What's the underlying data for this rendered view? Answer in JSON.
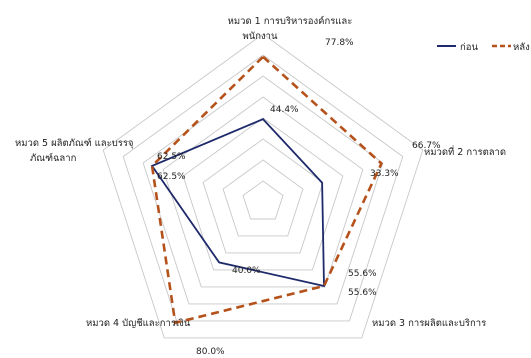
{
  "chart_data": {
    "type": "radar",
    "title": "",
    "categories": [
      [
        "หมวด 1 การบริหารองค์กรและ",
        "พนักงาน"
      ],
      [
        "หมวดที่ 2 การตลาด"
      ],
      [
        "หมวด 3 การผลิตและบริการ"
      ],
      [
        "หมวด 4 บัญชีและการเงิน"
      ],
      [
        "หมวด 5 ผลิตภัณฑ์ และบรรจุ",
        "ภัณฑ์ฉลาก"
      ]
    ],
    "series": [
      {
        "name": "ก่อน",
        "values": [
          44.4,
          33.3,
          55.6,
          40.0,
          62.5
        ],
        "color": "#1f2a6b",
        "style": "solid"
      },
      {
        "name": "หลัง",
        "values": [
          77.8,
          66.7,
          55.6,
          80.0,
          62.5
        ],
        "color": "#b5521c",
        "style": "dashed"
      }
    ],
    "value_labels": {
      "before": [
        "44.4%",
        "33.3%",
        "55.6%",
        "40.0%",
        "62.5%"
      ],
      "after": [
        "77.8%",
        "66.7%",
        "55.6%",
        "80.0%",
        "62.5%"
      ]
    },
    "rlim": [
      0,
      90
    ],
    "grid_rings": 8,
    "legend_position": "top-right"
  }
}
